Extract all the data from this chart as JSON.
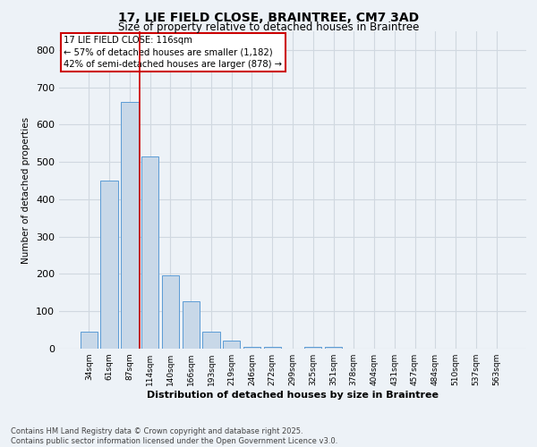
{
  "title": "17, LIE FIELD CLOSE, BRAINTREE, CM7 3AD",
  "subtitle": "Size of property relative to detached houses in Braintree",
  "xlabel": "Distribution of detached houses by size in Braintree",
  "ylabel": "Number of detached properties",
  "categories": [
    "34sqm",
    "61sqm",
    "87sqm",
    "114sqm",
    "140sqm",
    "166sqm",
    "193sqm",
    "219sqm",
    "246sqm",
    "272sqm",
    "299sqm",
    "325sqm",
    "351sqm",
    "378sqm",
    "404sqm",
    "431sqm",
    "457sqm",
    "484sqm",
    "510sqm",
    "537sqm",
    "563sqm"
  ],
  "values": [
    45,
    450,
    660,
    515,
    197,
    128,
    45,
    22,
    5,
    5,
    0,
    5,
    5,
    0,
    0,
    0,
    0,
    0,
    0,
    0,
    0
  ],
  "bar_color": "#c8d8e8",
  "bar_edge_color": "#5b9bd5",
  "grid_color": "#d0d8e0",
  "bg_color": "#edf2f7",
  "vline_color": "#cc0000",
  "vline_pos": 2.5,
  "annotation_title": "17 LIE FIELD CLOSE: 116sqm",
  "annotation_line1": "← 57% of detached houses are smaller (1,182)",
  "annotation_line2": "42% of semi-detached houses are larger (878) →",
  "annotation_box_color": "#cc0000",
  "footer1": "Contains HM Land Registry data © Crown copyright and database right 2025.",
  "footer2": "Contains public sector information licensed under the Open Government Licence v3.0.",
  "ylim": [
    0,
    850
  ],
  "yticks": [
    0,
    100,
    200,
    300,
    400,
    500,
    600,
    700,
    800
  ]
}
